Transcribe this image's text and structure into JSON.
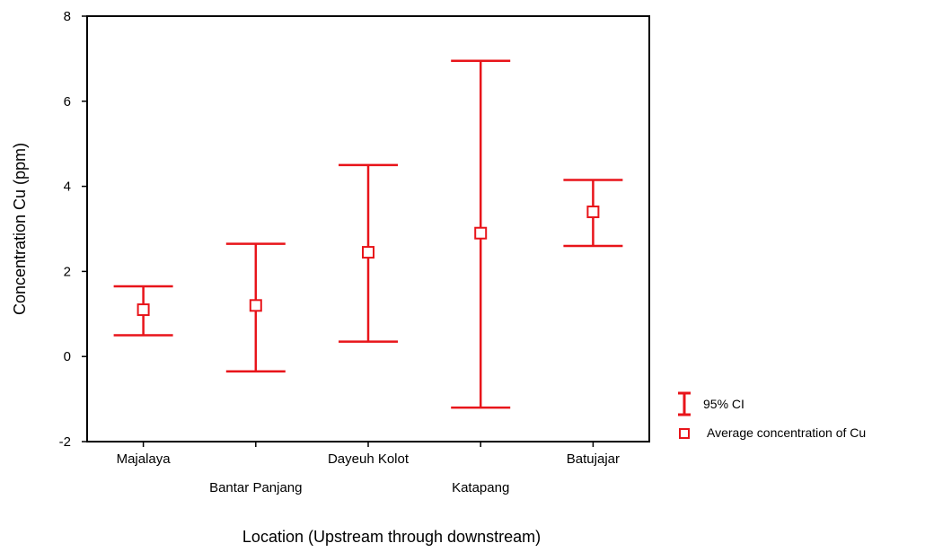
{
  "chart_data": {
    "type": "errorbar",
    "xlabel": "Location (Upstream through downstream)",
    "ylabel": "Concentration  Cu (ppm)",
    "ylim": [
      -2,
      8
    ],
    "yticks": [
      -2,
      0,
      2,
      4,
      6,
      8
    ],
    "grid": false,
    "legend_position": "right",
    "categories": [
      "Majalaya",
      "Bantar Panjang",
      "Dayeuh Kolot",
      "Katapang",
      "Batujajar"
    ],
    "mean": [
      1.1,
      1.2,
      2.45,
      2.9,
      3.4
    ],
    "ci_lower": [
      0.5,
      -0.35,
      0.35,
      -1.2,
      2.6
    ],
    "ci_upper": [
      1.65,
      2.65,
      4.5,
      6.95,
      4.15
    ],
    "legend": [
      {
        "symbol": "I",
        "label": "95% CI"
      },
      {
        "symbol": "square",
        "label": "Average concentration of Cu"
      }
    ],
    "color": "#e8141a"
  }
}
